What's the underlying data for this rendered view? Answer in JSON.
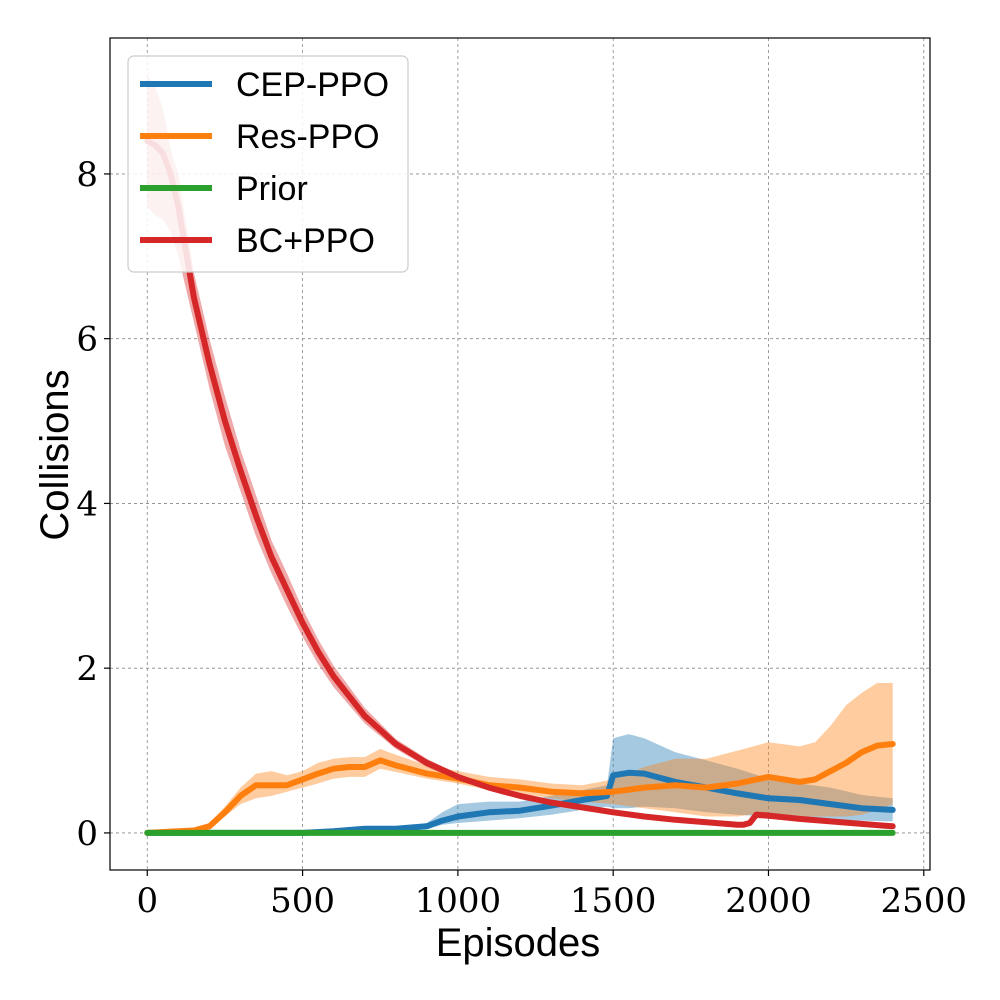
{
  "chart_data": {
    "type": "line",
    "title": "",
    "xlabel": "Episodes",
    "ylabel": "Collisions",
    "xlim": [
      -120,
      2520
    ],
    "ylim": [
      -0.45,
      9.65
    ],
    "xticks": [
      0,
      500,
      1000,
      1500,
      2000,
      2500
    ],
    "yticks": [
      0,
      2,
      4,
      6,
      8
    ],
    "xtick_labels": [
      "0",
      "500",
      "1000",
      "1500",
      "2000",
      "2500"
    ],
    "ytick_labels": [
      "0",
      "2",
      "4",
      "6",
      "8"
    ],
    "grid": true,
    "legend_position": "top-left",
    "series": [
      {
        "name": "CEP-PPO",
        "color": "#1f77b4",
        "x": [
          0,
          500,
          600,
          700,
          800,
          900,
          950,
          1000,
          1100,
          1200,
          1300,
          1400,
          1480,
          1500,
          1550,
          1600,
          1700,
          1800,
          1900,
          2000,
          2100,
          2200,
          2300,
          2400
        ],
        "y": [
          0,
          0,
          0.02,
          0.05,
          0.05,
          0.08,
          0.15,
          0.2,
          0.25,
          0.27,
          0.33,
          0.4,
          0.45,
          0.7,
          0.73,
          0.72,
          0.62,
          0.55,
          0.48,
          0.42,
          0.4,
          0.35,
          0.3,
          0.28
        ],
        "lower": [
          0,
          0,
          0.01,
          0.03,
          0.03,
          0.05,
          0.1,
          0.12,
          0.15,
          0.18,
          0.22,
          0.28,
          0.32,
          0.3,
          0.3,
          0.32,
          0.3,
          0.25,
          0.22,
          0.2,
          0.2,
          0.16,
          0.15,
          0.14
        ],
        "upper": [
          0,
          0,
          0.03,
          0.07,
          0.07,
          0.12,
          0.25,
          0.35,
          0.38,
          0.38,
          0.45,
          0.52,
          0.58,
          1.15,
          1.2,
          1.15,
          0.98,
          0.88,
          0.78,
          0.66,
          0.6,
          0.55,
          0.46,
          0.42
        ]
      },
      {
        "name": "Res-PPO",
        "color": "#ff7f0e",
        "x": [
          0,
          100,
          150,
          200,
          250,
          300,
          350,
          400,
          450,
          500,
          550,
          600,
          650,
          700,
          750,
          800,
          900,
          1000,
          1100,
          1200,
          1300,
          1400,
          1500,
          1600,
          1700,
          1800,
          1900,
          2000,
          2100,
          2150,
          2200,
          2250,
          2300,
          2350,
          2400
        ],
        "y": [
          0,
          0.02,
          0.03,
          0.08,
          0.25,
          0.45,
          0.58,
          0.58,
          0.58,
          0.65,
          0.72,
          0.78,
          0.8,
          0.8,
          0.88,
          0.82,
          0.72,
          0.66,
          0.58,
          0.55,
          0.5,
          0.48,
          0.5,
          0.55,
          0.58,
          0.55,
          0.6,
          0.68,
          0.62,
          0.65,
          0.75,
          0.85,
          0.98,
          1.06,
          1.08
        ],
        "lower": [
          0,
          0.01,
          0.02,
          0.05,
          0.2,
          0.35,
          0.42,
          0.45,
          0.5,
          0.55,
          0.6,
          0.66,
          0.68,
          0.68,
          0.78,
          0.74,
          0.66,
          0.6,
          0.52,
          0.48,
          0.42,
          0.38,
          0.35,
          0.3,
          0.25,
          0.2,
          0.2,
          0.25,
          0.2,
          0.2,
          0.2,
          0.2,
          0.22,
          0.28,
          0.35
        ],
        "upper": [
          0,
          0.03,
          0.05,
          0.12,
          0.32,
          0.55,
          0.72,
          0.75,
          0.7,
          0.75,
          0.85,
          0.9,
          0.92,
          0.92,
          1.02,
          0.95,
          0.82,
          0.75,
          0.68,
          0.65,
          0.6,
          0.58,
          0.65,
          0.8,
          0.9,
          0.9,
          1.0,
          1.1,
          1.05,
          1.1,
          1.3,
          1.55,
          1.7,
          1.82,
          1.82
        ]
      },
      {
        "name": "Prior",
        "color": "#2ca02c",
        "x": [
          0,
          2400
        ],
        "y": [
          0,
          0
        ],
        "lower": [
          0,
          0
        ],
        "upper": [
          0,
          0
        ]
      },
      {
        "name": "BC+PPO",
        "color": "#d62728",
        "x": [
          0,
          25,
          50,
          75,
          100,
          150,
          200,
          250,
          300,
          350,
          400,
          450,
          500,
          550,
          600,
          700,
          800,
          900,
          1000,
          1100,
          1200,
          1300,
          1400,
          1500,
          1600,
          1700,
          1800,
          1900,
          1920,
          1940,
          1960,
          2000,
          2100,
          2200,
          2300,
          2400
        ],
        "y": [
          8.4,
          8.35,
          8.25,
          8.0,
          7.6,
          6.5,
          5.7,
          5.0,
          4.4,
          3.85,
          3.35,
          2.95,
          2.55,
          2.2,
          1.9,
          1.42,
          1.08,
          0.85,
          0.68,
          0.55,
          0.45,
          0.37,
          0.31,
          0.25,
          0.2,
          0.16,
          0.13,
          0.1,
          0.1,
          0.12,
          0.22,
          0.21,
          0.17,
          0.14,
          0.11,
          0.08
        ],
        "lower": [
          7.6,
          7.5,
          7.45,
          7.3,
          7.0,
          6.2,
          5.4,
          4.7,
          4.15,
          3.6,
          3.15,
          2.75,
          2.38,
          2.05,
          1.77,
          1.33,
          1.02,
          0.8,
          0.64,
          0.52,
          0.42,
          0.34,
          0.28,
          0.22,
          0.18,
          0.14,
          0.11,
          0.08,
          0.08,
          0.1,
          0.18,
          0.17,
          0.14,
          0.11,
          0.09,
          0.06
        ],
        "upper": [
          9.2,
          9.05,
          8.8,
          8.3,
          8.0,
          6.8,
          6.0,
          5.3,
          4.65,
          4.1,
          3.55,
          3.15,
          2.72,
          2.35,
          2.03,
          1.52,
          1.14,
          0.9,
          0.72,
          0.58,
          0.48,
          0.4,
          0.34,
          0.28,
          0.22,
          0.18,
          0.15,
          0.12,
          0.12,
          0.14,
          0.26,
          0.25,
          0.2,
          0.17,
          0.13,
          0.1
        ]
      }
    ]
  }
}
